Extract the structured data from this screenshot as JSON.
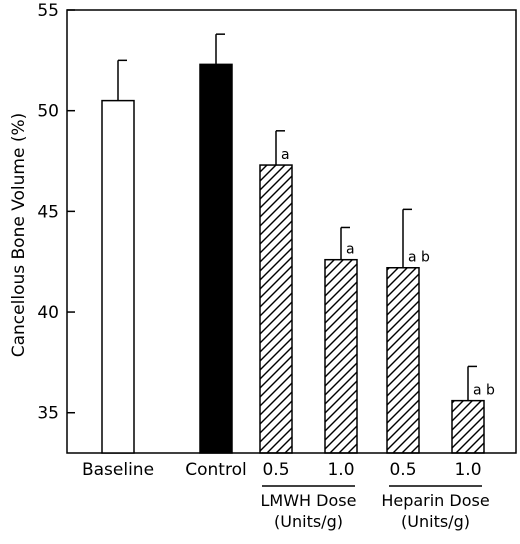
{
  "chart_data": {
    "type": "bar",
    "ylabel": "Cancellous Bone Volume (%)",
    "ylim": [
      33,
      55
    ],
    "yticks": [
      35,
      40,
      45,
      50,
      55
    ],
    "categories": [
      "Baseline",
      "Control",
      "0.5",
      "1.0",
      "0.5",
      "1.0"
    ],
    "values": [
      50.5,
      52.3,
      47.3,
      42.6,
      42.2,
      35.6
    ],
    "errors": [
      2.0,
      1.5,
      1.7,
      1.6,
      2.9,
      1.7
    ],
    "fills": [
      "open",
      "solid",
      "hatched",
      "hatched",
      "hatched",
      "hatched"
    ],
    "significance": [
      "",
      "",
      "a",
      "a",
      "a b",
      "a b"
    ],
    "groups": [
      {
        "line1": "LMWH Dose",
        "line2": "(Units/g)",
        "from": 2,
        "to": 3
      },
      {
        "line1": "Heparin Dose",
        "line2": "(Units/g)",
        "from": 4,
        "to": 5
      }
    ],
    "colors": {
      "solid": "#000000",
      "open": "#ffffff",
      "stroke": "#000000"
    }
  }
}
